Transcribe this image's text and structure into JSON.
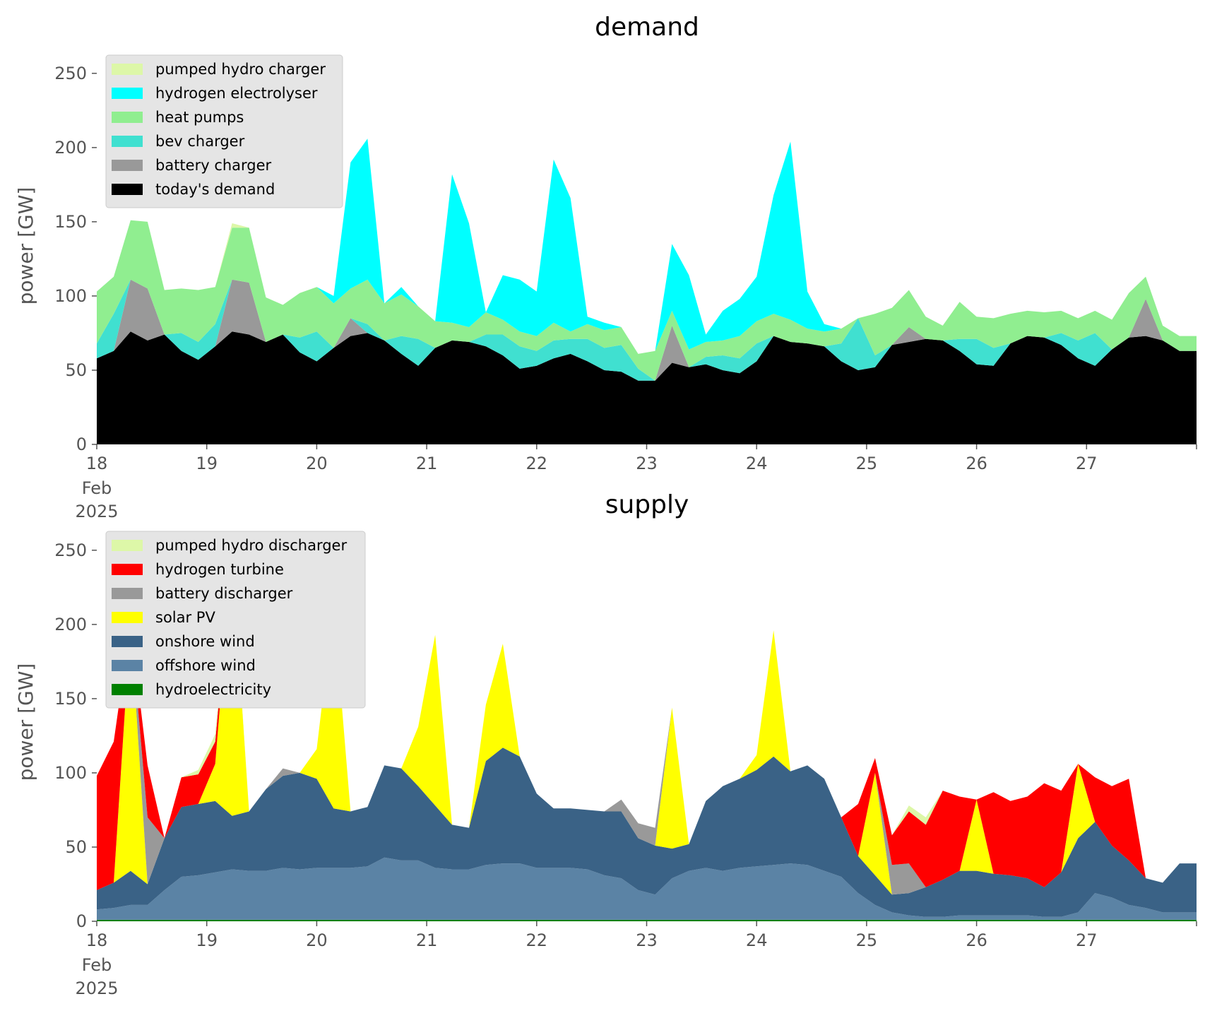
{
  "chart_data": [
    {
      "type": "area",
      "title": "demand",
      "xlabel": "",
      "ylabel": "power [GW]",
      "ylim": [
        0,
        258
      ],
      "xlim": [
        "2025-02-18 00:00",
        "2025-02-28 00:00"
      ],
      "x_step_hours": 6,
      "stacked": true,
      "grid": false,
      "legend_position": "top-left",
      "x_tick_labels": [
        "18",
        "19",
        "20",
        "21",
        "22",
        "23",
        "24",
        "25",
        "26",
        "27"
      ],
      "x_tick_sublabels": [
        "Feb",
        "2025"
      ],
      "y_ticks": [
        0,
        50,
        100,
        150,
        200,
        250
      ],
      "series": [
        {
          "name": "today's demand",
          "color": "#000000",
          "values": [
            58,
            63,
            76,
            70,
            74,
            63,
            57,
            66,
            76,
            74,
            69,
            74,
            62,
            56,
            65,
            73,
            75,
            70,
            61,
            53,
            65,
            70,
            69,
            66,
            60,
            51,
            53,
            58,
            61,
            56,
            50,
            49,
            43,
            43,
            55,
            52,
            54,
            50,
            48,
            56,
            73,
            69,
            68,
            66,
            56,
            50,
            52,
            67,
            69,
            71,
            70,
            63,
            54,
            53,
            68,
            73,
            72,
            67,
            58,
            53,
            64,
            72,
            73,
            70,
            63
          ]
        },
        {
          "name": "battery charger",
          "color": "#999999",
          "values": [
            0,
            0,
            35,
            35,
            0,
            0,
            0,
            0,
            35,
            35,
            0,
            0,
            0,
            0,
            0,
            12,
            0,
            0,
            0,
            0,
            0,
            0,
            0,
            0,
            0,
            0,
            0,
            0,
            0,
            0,
            0,
            0,
            0,
            0,
            25,
            0,
            0,
            0,
            0,
            0,
            0,
            0,
            0,
            0,
            0,
            0,
            0,
            0,
            10,
            0,
            0,
            0,
            0,
            0,
            0,
            0,
            0,
            0,
            0,
            0,
            0,
            0,
            25,
            0,
            0
          ]
        },
        {
          "name": "bev charger",
          "color": "#40e0d0",
          "values": [
            10,
            25,
            0,
            0,
            0,
            12,
            12,
            15,
            0,
            0,
            0,
            0,
            10,
            20,
            0,
            0,
            6,
            0,
            12,
            18,
            0,
            0,
            0,
            8,
            14,
            15,
            10,
            12,
            10,
            15,
            15,
            18,
            8,
            0,
            0,
            0,
            5,
            10,
            10,
            12,
            0,
            0,
            0,
            0,
            12,
            35,
            8,
            0,
            0,
            0,
            0,
            8,
            17,
            12,
            0,
            0,
            0,
            8,
            12,
            22,
            0,
            0,
            0,
            0,
            0
          ]
        },
        {
          "name": "heat pumps",
          "color": "#90ee90",
          "values": [
            35,
            25,
            40,
            45,
            30,
            30,
            35,
            25,
            35,
            37,
            30,
            20,
            30,
            30,
            30,
            20,
            30,
            25,
            28,
            22,
            18,
            12,
            10,
            15,
            10,
            10,
            10,
            12,
            5,
            10,
            12,
            12,
            10,
            20,
            10,
            12,
            10,
            10,
            15,
            15,
            15,
            15,
            10,
            10,
            10,
            0,
            28,
            25,
            25,
            15,
            10,
            25,
            15,
            20,
            20,
            17,
            17,
            15,
            15,
            15,
            20,
            30,
            15,
            10,
            10
          ]
        },
        {
          "name": "hydrogen electrolyser",
          "color": "#00ffff",
          "values": [
            0,
            0,
            0,
            0,
            0,
            0,
            0,
            0,
            0,
            0,
            0,
            0,
            0,
            0,
            5,
            85,
            95,
            0,
            5,
            0,
            0,
            100,
            70,
            0,
            30,
            35,
            30,
            110,
            90,
            5,
            5,
            0,
            0,
            0,
            45,
            50,
            5,
            20,
            25,
            30,
            80,
            120,
            25,
            5,
            0,
            0,
            0,
            0,
            0,
            0,
            0,
            0,
            0,
            0,
            0,
            0,
            0,
            0,
            0,
            0,
            0,
            0,
            0,
            0,
            0
          ]
        },
        {
          "name": "pumped hydro charger",
          "color": "#ddf7a8",
          "values": [
            0,
            0,
            0,
            0,
            0,
            0,
            0,
            0,
            3,
            0,
            0,
            0,
            0,
            0,
            0,
            0,
            0,
            0,
            0,
            0,
            0,
            0,
            0,
            0,
            0,
            0,
            0,
            0,
            0,
            0,
            0,
            0,
            0,
            0,
            0,
            0,
            0,
            0,
            0,
            0,
            0,
            0,
            0,
            0,
            0,
            0,
            0,
            0,
            0,
            0,
            0,
            0,
            0,
            0,
            0,
            0,
            0,
            0,
            0,
            0,
            0,
            0,
            0,
            0,
            0
          ]
        }
      ]
    },
    {
      "type": "area",
      "title": "supply",
      "xlabel": "",
      "ylabel": "power [GW]",
      "ylim": [
        0,
        258
      ],
      "xlim": [
        "2025-02-18 00:00",
        "2025-02-28 00:00"
      ],
      "x_step_hours": 6,
      "stacked": true,
      "grid": false,
      "legend_position": "top-left",
      "x_tick_labels": [
        "18",
        "19",
        "20",
        "21",
        "22",
        "23",
        "24",
        "25",
        "26",
        "27"
      ],
      "x_tick_sublabels": [
        "Feb",
        "2025"
      ],
      "y_ticks": [
        0,
        50,
        100,
        150,
        200,
        250
      ],
      "series": [
        {
          "name": "hydroelectricity",
          "color": "#008000",
          "values": [
            1,
            1,
            1,
            1,
            1,
            1,
            1,
            1,
            1,
            1,
            1,
            1,
            1,
            1,
            1,
            1,
            1,
            1,
            1,
            1,
            1,
            1,
            1,
            1,
            1,
            1,
            1,
            1,
            1,
            1,
            1,
            1,
            1,
            1,
            1,
            1,
            1,
            1,
            1,
            1,
            1,
            1,
            1,
            1,
            1,
            1,
            1,
            1,
            1,
            1,
            1,
            1,
            1,
            1,
            1,
            1,
            1,
            1,
            1,
            1,
            1,
            1,
            1,
            1,
            1
          ]
        },
        {
          "name": "offshore wind",
          "color": "#5b83a5",
          "values": [
            7,
            8,
            10,
            10,
            20,
            29,
            30,
            32,
            34,
            33,
            33,
            35,
            34,
            35,
            35,
            35,
            36,
            42,
            40,
            40,
            35,
            34,
            34,
            37,
            38,
            38,
            35,
            35,
            35,
            34,
            30,
            28,
            20,
            17,
            28,
            33,
            35,
            33,
            35,
            36,
            37,
            38,
            37,
            33,
            29,
            18,
            10,
            5,
            3,
            2,
            2,
            3,
            3,
            3,
            3,
            3,
            2,
            2,
            5,
            18,
            15,
            10,
            8,
            5,
            5
          ]
        },
        {
          "name": "onshore wind",
          "color": "#3a6286",
          "values": [
            13,
            17,
            23,
            14,
            35,
            47,
            48,
            48,
            36,
            40,
            55,
            62,
            65,
            60,
            40,
            38,
            40,
            62,
            62,
            50,
            42,
            30,
            28,
            70,
            78,
            72,
            50,
            40,
            40,
            40,
            43,
            45,
            35,
            33,
            20,
            18,
            45,
            57,
            60,
            65,
            73,
            62,
            67,
            62,
            40,
            25,
            20,
            12,
            15,
            20,
            25,
            30,
            30,
            28,
            27,
            25,
            20,
            30,
            50,
            48,
            35,
            30,
            20,
            20,
            33
          ]
        },
        {
          "name": "solar PV",
          "color": "#ffff00",
          "values": [
            0,
            0,
            167,
            0,
            0,
            0,
            0,
            25,
            175,
            0,
            0,
            0,
            0,
            20,
            136,
            0,
            0,
            0,
            0,
            40,
            115,
            0,
            0,
            38,
            70,
            0,
            0,
            0,
            0,
            0,
            0,
            0,
            0,
            0,
            95,
            0,
            0,
            0,
            0,
            10,
            85,
            0,
            0,
            0,
            0,
            0,
            69,
            0,
            0,
            0,
            0,
            0,
            48,
            0,
            0,
            0,
            0,
            0,
            50,
            0,
            0,
            0,
            0,
            0,
            0
          ]
        },
        {
          "name": "battery discharger",
          "color": "#999999",
          "values": [
            0,
            0,
            0,
            45,
            0,
            0,
            0,
            0,
            0,
            0,
            0,
            5,
            0,
            0,
            0,
            0,
            0,
            0,
            0,
            0,
            0,
            0,
            0,
            0,
            0,
            0,
            0,
            0,
            0,
            0,
            0,
            8,
            10,
            12,
            0,
            0,
            0,
            0,
            0,
            0,
            0,
            0,
            0,
            0,
            0,
            0,
            0,
            20,
            20,
            0,
            0,
            0,
            0,
            0,
            0,
            0,
            0,
            0,
            0,
            0,
            0,
            0,
            0,
            0,
            0
          ]
        },
        {
          "name": "hydrogen turbine",
          "color": "#ff0000",
          "values": [
            77,
            95,
            0,
            35,
            0,
            20,
            20,
            15,
            0,
            0,
            0,
            0,
            0,
            0,
            0,
            0,
            0,
            0,
            0,
            0,
            0,
            0,
            0,
            0,
            0,
            0,
            0,
            0,
            0,
            0,
            0,
            0,
            0,
            0,
            0,
            0,
            0,
            0,
            0,
            0,
            0,
            0,
            0,
            0,
            0,
            35,
            10,
            20,
            35,
            42,
            60,
            50,
            0,
            55,
            50,
            55,
            70,
            55,
            0,
            30,
            40,
            55,
            0,
            0,
            0
          ]
        },
        {
          "name": "pumped hydro discharger",
          "color": "#ddf7a8",
          "values": [
            0,
            0,
            0,
            0,
            0,
            0,
            3,
            5,
            3,
            0,
            0,
            0,
            0,
            0,
            0,
            0,
            0,
            0,
            0,
            0,
            0,
            0,
            0,
            0,
            0,
            0,
            0,
            0,
            0,
            0,
            0,
            0,
            0,
            0,
            0,
            0,
            0,
            0,
            0,
            0,
            0,
            0,
            0,
            0,
            0,
            0,
            0,
            0,
            4,
            5,
            0,
            0,
            0,
            0,
            0,
            0,
            0,
            0,
            0,
            0,
            0,
            0,
            0,
            0,
            0
          ]
        }
      ]
    }
  ]
}
